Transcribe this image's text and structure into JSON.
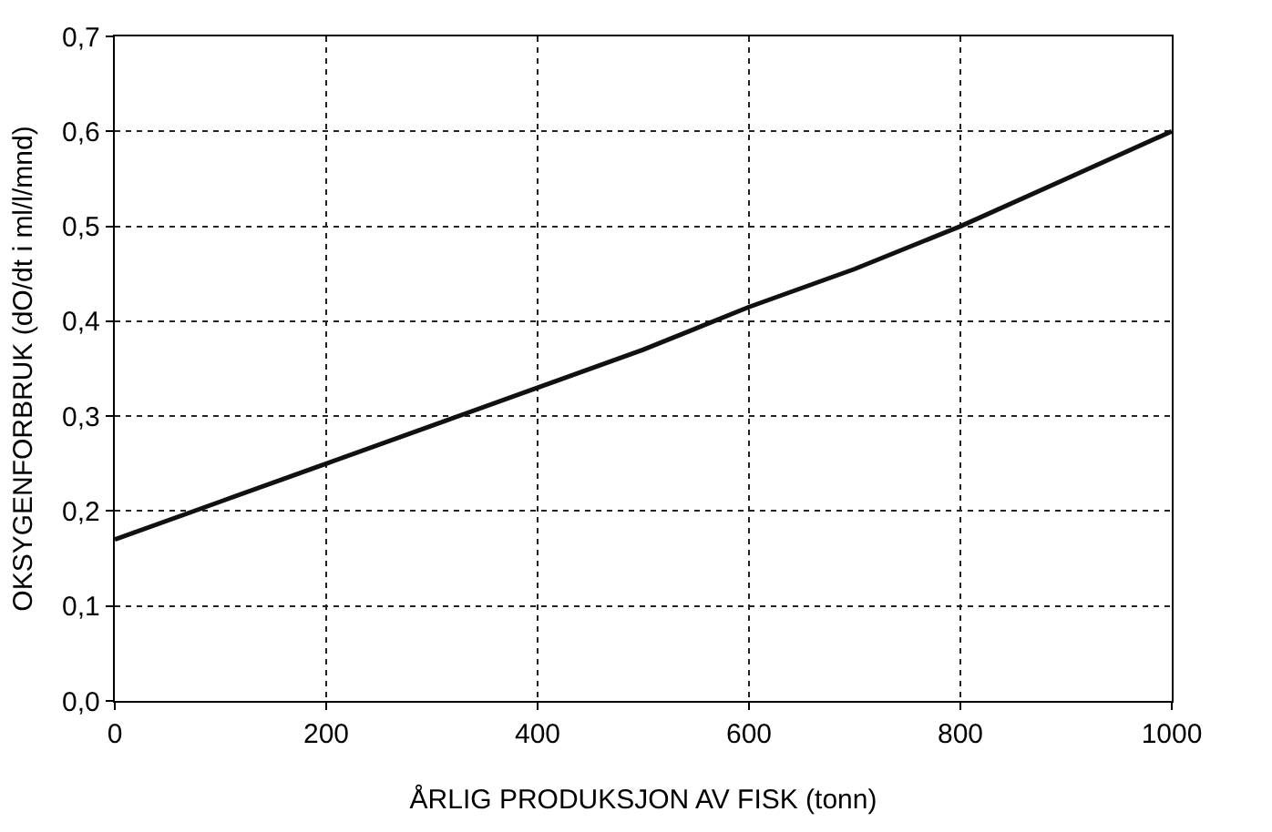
{
  "chart_data": {
    "type": "line",
    "xlabel": "ÅRLIG PRODUKSJON AV FISK (tonn)",
    "ylabel": "OKSYGENFORBRUK (dO/dt i ml/l/mnd)",
    "x": [
      0,
      100,
      200,
      300,
      400,
      500,
      600,
      700,
      800,
      900,
      1000
    ],
    "series": [
      {
        "color": "#111111",
        "values": [
          0.17,
          0.21,
          0.25,
          0.29,
          0.33,
          0.37,
          0.415,
          0.455,
          0.5,
          0.55,
          0.6
        ]
      }
    ],
    "xlim": [
      0,
      1000
    ],
    "xticks": [
      0,
      200,
      400,
      600,
      800,
      1000
    ],
    "ylim": [
      0,
      0.7
    ],
    "yticks": [
      {
        "value": 0,
        "label": "0,0"
      },
      {
        "value": 0.1,
        "label": "0,1"
      },
      {
        "value": 0.2,
        "label": "0,2"
      },
      {
        "value": 0.3,
        "label": "0,3"
      },
      {
        "value": 0.4,
        "label": "0,4"
      },
      {
        "value": 0.5,
        "label": "0,5"
      },
      {
        "value": 0.6,
        "label": "0,6"
      },
      {
        "value": 0.7,
        "label": "0,7"
      }
    ],
    "grid": true,
    "marker": "none",
    "line_style": "solid"
  }
}
